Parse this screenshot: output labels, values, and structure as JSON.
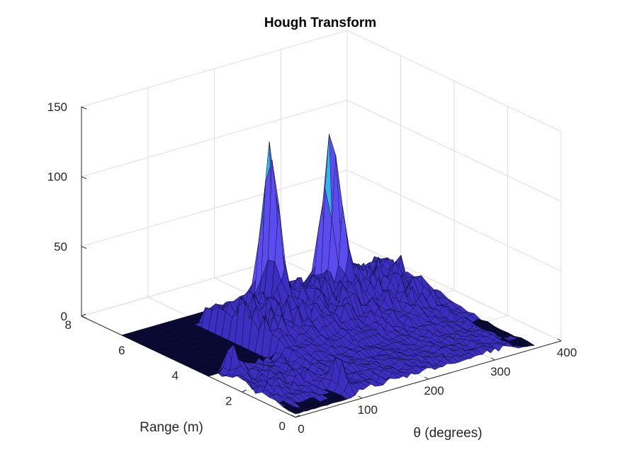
{
  "chart_data": {
    "type": "surface",
    "title": "Hough Transform",
    "xlabel": "θ (degrees)",
    "ylabel": "Range (m)",
    "zlabel": "",
    "xlim": [
      0,
      400
    ],
    "ylim": [
      0,
      8
    ],
    "zlim": [
      0,
      150
    ],
    "xticks": [
      "0",
      "100",
      "200",
      "300",
      "400"
    ],
    "yticks": [
      "0",
      "2",
      "4",
      "6",
      "8"
    ],
    "zticks": [
      "0",
      "50",
      "100",
      "150"
    ],
    "grid": true,
    "colormap": [
      "#0a0a3a",
      "#3a2fc0",
      "#5b4cf0",
      "#2fb8e8"
    ],
    "surface_extent": {
      "theta": [
        0,
        360
      ],
      "range": [
        0,
        6.5
      ]
    },
    "peaks": [
      {
        "theta": 160,
        "range": 5.0,
        "value": 128
      },
      {
        "theta": 250,
        "range": 5.0,
        "value": 108
      },
      {
        "theta": 155,
        "range": 4.6,
        "value": 70
      },
      {
        "theta": 255,
        "range": 4.6,
        "value": 55
      },
      {
        "theta": 20,
        "range": 2.8,
        "value": 22
      },
      {
        "theta": 90,
        "range": 0.6,
        "value": 23
      }
    ]
  }
}
